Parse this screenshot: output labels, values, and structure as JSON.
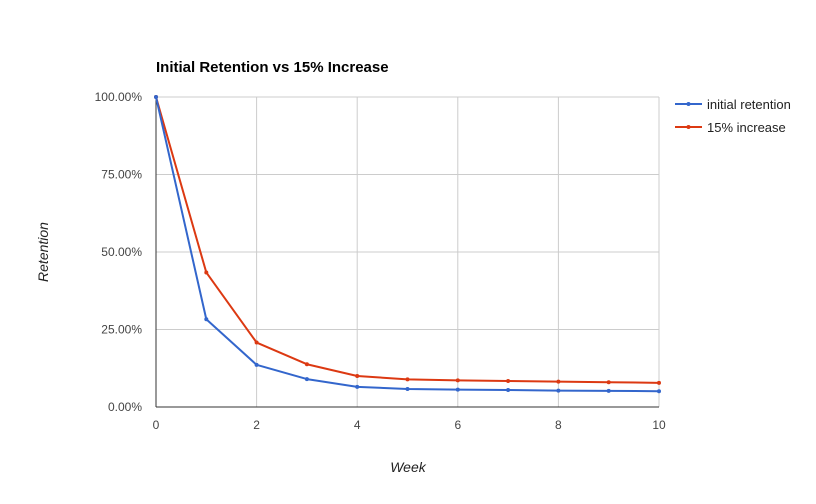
{
  "chart_data": {
    "type": "line",
    "title": "Initial Retention vs 15% Increase",
    "xlabel": "Week",
    "ylabel": "Retention",
    "x": [
      0,
      1,
      2,
      3,
      4,
      5,
      6,
      7,
      8,
      9,
      10
    ],
    "xlim": [
      0,
      10
    ],
    "ylim": [
      0,
      100
    ],
    "x_ticks": [
      0,
      2,
      4,
      6,
      8,
      10
    ],
    "x_tick_labels": [
      "0",
      "2",
      "4",
      "6",
      "8",
      "10"
    ],
    "y_ticks": [
      0,
      25,
      50,
      75,
      100
    ],
    "y_tick_labels": [
      "0.00%",
      "25.00%",
      "50.00%",
      "75.00%",
      "100.00%"
    ],
    "grid": true,
    "legend_position": "right",
    "series": [
      {
        "name": "initial retention",
        "color": "#3366cc",
        "values": [
          100,
          28.3,
          13.6,
          9.0,
          6.5,
          5.8,
          5.6,
          5.5,
          5.3,
          5.2,
          5.1
        ]
      },
      {
        "name": "15% increase",
        "color": "#dc3912",
        "values": [
          100,
          43.4,
          20.8,
          13.8,
          10.0,
          8.9,
          8.6,
          8.4,
          8.2,
          8.0,
          7.8
        ]
      }
    ]
  }
}
